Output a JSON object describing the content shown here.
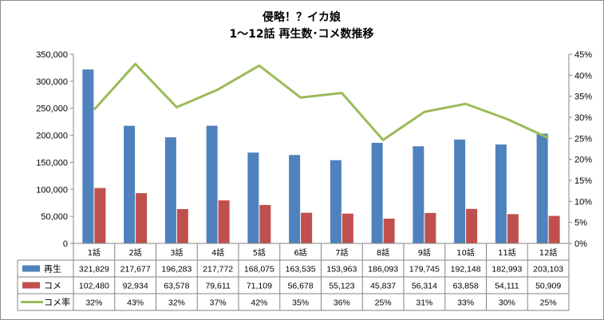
{
  "chart_data": {
    "type": "bar+line",
    "title": "侵略！？イカ娘",
    "subtitle": "1～12話 再生数･コメ数推移",
    "categories": [
      "1話",
      "2話",
      "3話",
      "4話",
      "5話",
      "6話",
      "7話",
      "8話",
      "9話",
      "10話",
      "11話",
      "12話"
    ],
    "series": [
      {
        "name": "再生",
        "type": "bar",
        "axis": "left",
        "color": "#4f81bd",
        "values": [
          321829,
          217677,
          196283,
          217772,
          168075,
          163535,
          153963,
          186093,
          179745,
          192148,
          182993,
          203103
        ],
        "labels": [
          "321,829",
          "217,677",
          "196,283",
          "217,772",
          "168,075",
          "163,535",
          "153,963",
          "186,093",
          "179,745",
          "192,148",
          "182,993",
          "203,103"
        ]
      },
      {
        "name": "コメ",
        "type": "bar",
        "axis": "left",
        "color": "#c0504d",
        "values": [
          102480,
          92934,
          63578,
          79611,
          71109,
          56678,
          55123,
          45837,
          56314,
          63858,
          54111,
          50909
        ],
        "labels": [
          "102,480",
          "92,934",
          "63,578",
          "79,611",
          "71,109",
          "56,678",
          "55,123",
          "45,837",
          "56,314",
          "63,858",
          "54,111",
          "50,909"
        ]
      },
      {
        "name": "コメ率",
        "type": "line",
        "axis": "right",
        "color": "#9bbb59",
        "values": [
          31.8,
          42.7,
          32.4,
          36.6,
          42.3,
          34.7,
          35.8,
          24.6,
          31.3,
          33.2,
          29.6,
          25.1
        ],
        "labels": [
          "32%",
          "43%",
          "32%",
          "37%",
          "42%",
          "35%",
          "36%",
          "25%",
          "31%",
          "33%",
          "30%",
          "25%"
        ]
      }
    ],
    "y_left": {
      "min": 0,
      "max": 350000,
      "step": 50000,
      "ticks": [
        "0",
        "50,000",
        "100,000",
        "150,000",
        "200,000",
        "250,000",
        "300,000",
        "350,000"
      ]
    },
    "y_right": {
      "min": 0,
      "max": 45,
      "step": 5,
      "ticks": [
        "0%",
        "5%",
        "10%",
        "15%",
        "20%",
        "25%",
        "30%",
        "35%",
        "40%",
        "45%"
      ]
    },
    "legend": "data-table-bottom",
    "grid": false
  }
}
